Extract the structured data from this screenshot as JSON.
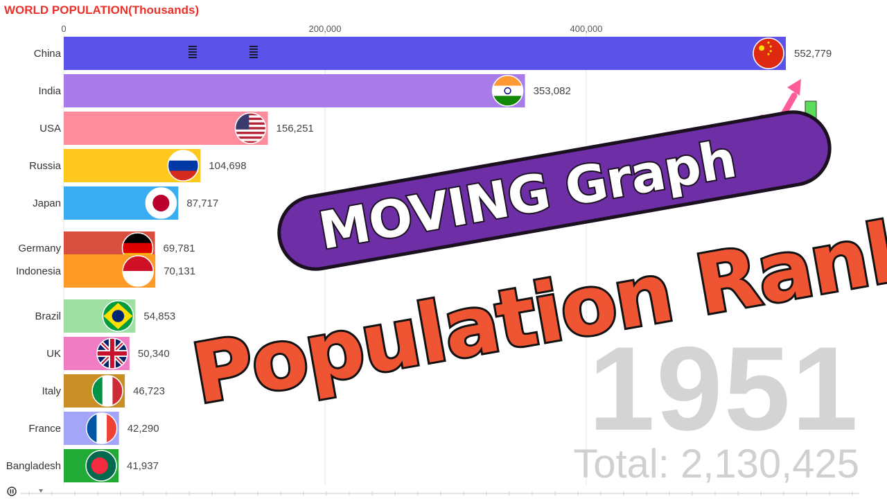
{
  "title": "WORLD POPULATION(Thousands)",
  "year": "1951",
  "total": "Total: 2,130,425",
  "banner": {
    "subtitle": "MOVING Graph",
    "headline": "Population Rank"
  },
  "controls": {
    "play_glyph": "⏸"
  },
  "chart_data": {
    "type": "bar",
    "orientation": "horizontal",
    "xlim": [
      0,
      570000
    ],
    "x_ticks": [
      0,
      200000,
      400000
    ],
    "x_tick_labels": [
      "0",
      "200,000",
      "400,000"
    ],
    "grid": true,
    "categories": [
      "China",
      "India",
      "USA",
      "Russia",
      "Japan",
      "Germany",
      "Indonesia",
      "Brazil",
      "UK",
      "Italy",
      "France",
      "Bangladesh"
    ],
    "values": [
      552779,
      353082,
      156251,
      104698,
      87717,
      69781,
      70131,
      54853,
      50340,
      46723,
      42290,
      41937
    ],
    "value_labels": [
      "552,779",
      "353,082",
      "156,251",
      "104,698",
      "87,717",
      "69,781",
      "70,131",
      "54,853",
      "50,340",
      "46,723",
      "42,290",
      "41,937"
    ],
    "colors": [
      "#5b52ea",
      "#a77be8",
      "#ff8c9c",
      "#ffc81f",
      "#3aacf2",
      "#d94f3f",
      "#ff9a26",
      "#9fdfa3",
      "#f07cc4",
      "#c98f26",
      "#a3a6f8",
      "#22aa36"
    ],
    "flags": [
      "china-flag",
      "india-flag",
      "usa-flag",
      "russia-flag",
      "japan-flag",
      "germany-flag",
      "indonesia-flag",
      "brazil-flag",
      "uk-flag",
      "italy-flag",
      "france-flag",
      "bangladesh-flag"
    ]
  }
}
